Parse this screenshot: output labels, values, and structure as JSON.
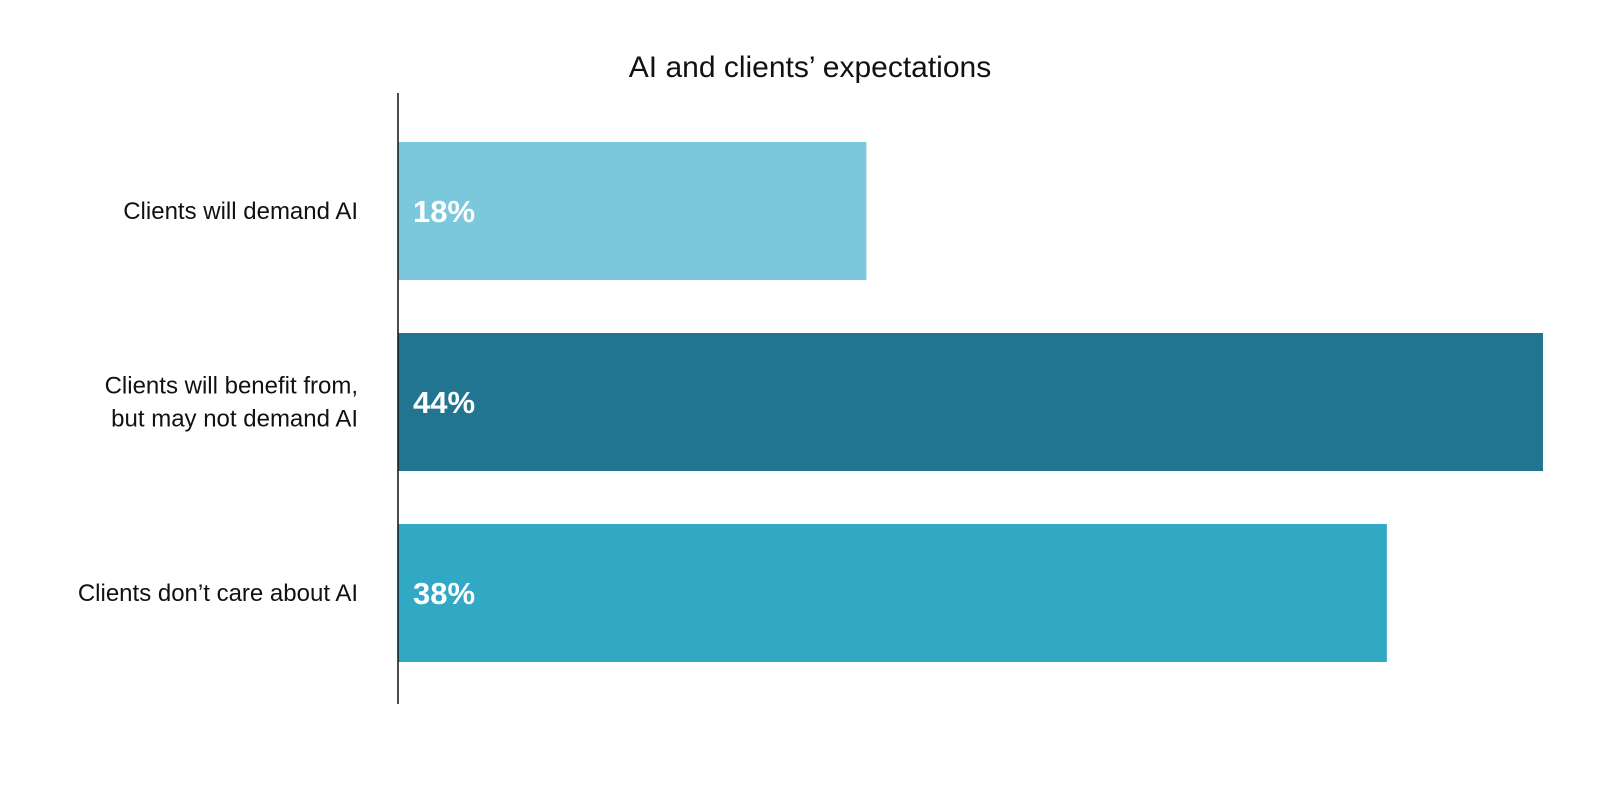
{
  "chart_data": {
    "type": "bar",
    "orientation": "horizontal",
    "title": "AI and clients’ expectations",
    "xlabel": "",
    "ylabel": "",
    "categories": [
      [
        "Clients will demand AI"
      ],
      [
        "Clients will benefit from,",
        "but may not demand AI"
      ],
      [
        "Clients don’t care about AI"
      ]
    ],
    "values": [
      18,
      44,
      38
    ],
    "value_labels": [
      "18%",
      "44%",
      "38%"
    ],
    "colors": [
      "#7bc7db",
      "#217590",
      "#31a8c4"
    ],
    "value_label_color": "#ffffff",
    "xlim": [
      0,
      44
    ],
    "grid": false,
    "legend": "none"
  }
}
